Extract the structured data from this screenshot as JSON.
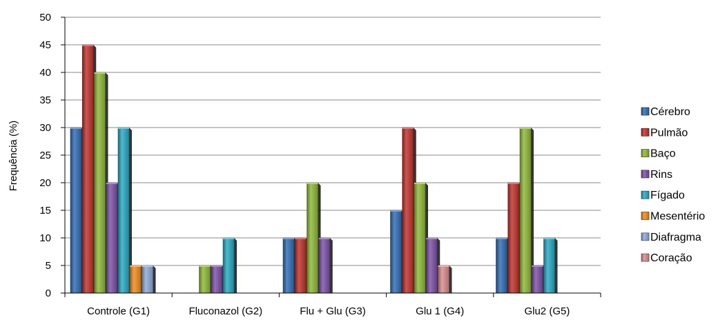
{
  "chart_data": {
    "type": "bar",
    "title": "",
    "xlabel": "",
    "ylabel": "Frequência (%)",
    "ylim": [
      0,
      50
    ],
    "yticks": [
      0,
      5,
      10,
      15,
      20,
      25,
      30,
      35,
      40,
      45,
      50
    ],
    "grid": true,
    "legend_position": "right",
    "categories": [
      "Controle (G1)",
      "Fluconazol (G2)",
      "Flu + Glu (G3)",
      "Glu 1 (G4)",
      "Glu2 (G5)"
    ],
    "series": [
      {
        "name": "Cérebro",
        "color": "#2f6bb3",
        "values": [
          30,
          0,
          10,
          15,
          10
        ]
      },
      {
        "name": "Pulmão",
        "color": "#c0312b",
        "values": [
          45,
          0,
          10,
          30,
          20
        ]
      },
      {
        "name": "Baço",
        "color": "#8db836",
        "values": [
          40,
          5,
          20,
          20,
          30
        ]
      },
      {
        "name": "Rins",
        "color": "#7b4fa5",
        "values": [
          20,
          5,
          10,
          10,
          5
        ]
      },
      {
        "name": "Fígado",
        "color": "#27a8c2",
        "values": [
          30,
          10,
          0,
          0,
          10
        ]
      },
      {
        "name": "Mesentério",
        "color": "#f08a1c",
        "values": [
          5,
          0,
          0,
          0,
          0
        ]
      },
      {
        "name": "Diafragma",
        "color": "#8ea9d6",
        "values": [
          5,
          0,
          0,
          0,
          0
        ]
      },
      {
        "name": "Coração",
        "color": "#d88b8b",
        "values": [
          0,
          0,
          0,
          5,
          0
        ]
      }
    ]
  }
}
